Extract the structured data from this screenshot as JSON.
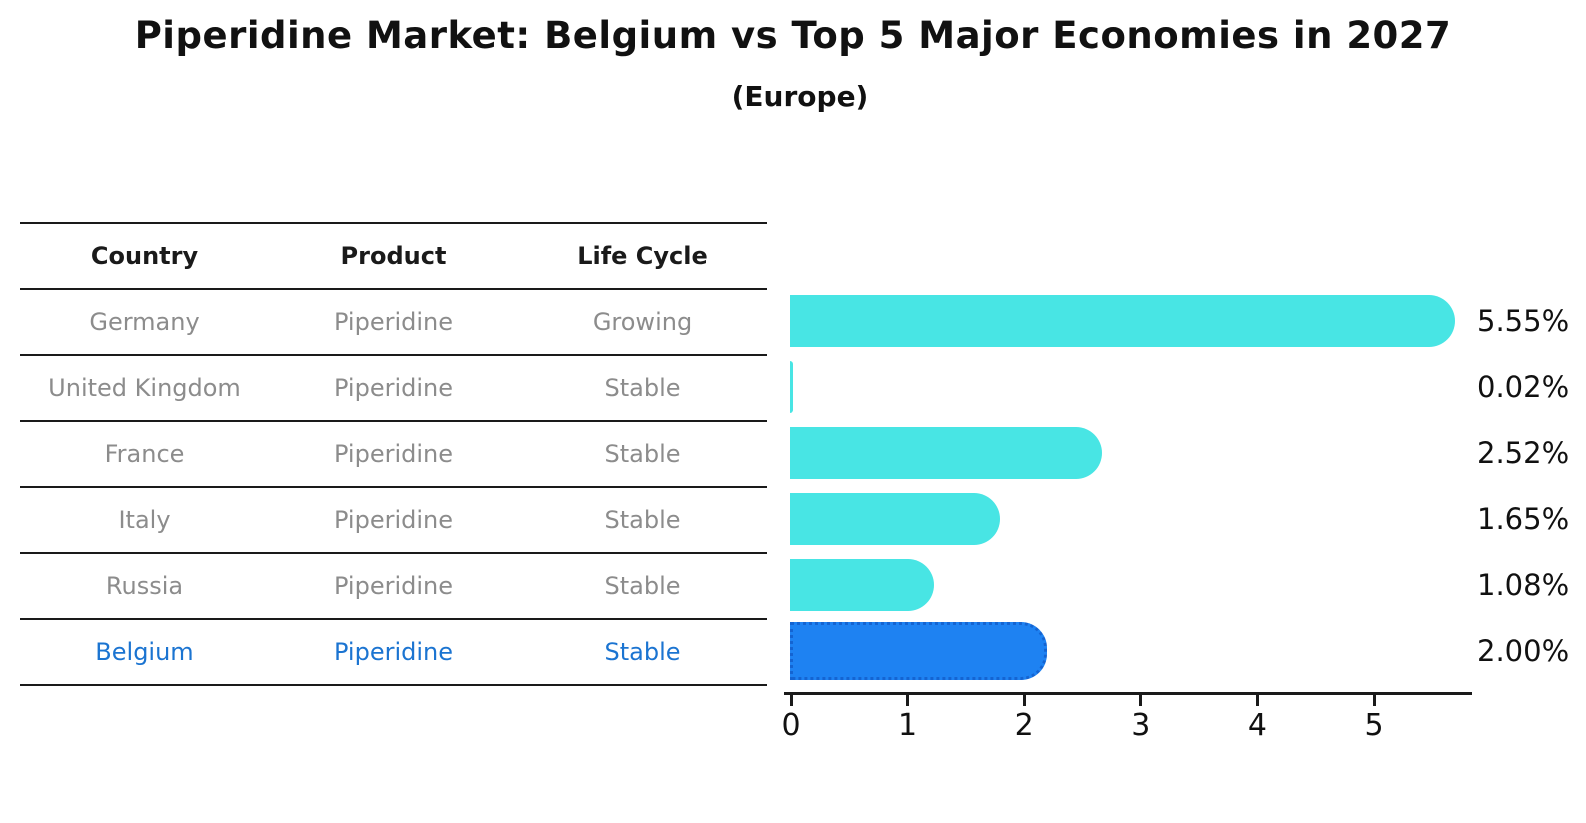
{
  "title": "Piperidine Market: Belgium vs Top 5 Major Economies in 2027",
  "subtitle": "(Europe)",
  "table": {
    "headers": [
      "Country",
      "Product",
      "Life Cycle"
    ]
  },
  "rows": [
    {
      "country": "Germany",
      "product": "Piperidine",
      "life_cycle": "Growing",
      "value": 5.55,
      "value_label": "5.55%",
      "highlighted": false
    },
    {
      "country": "United Kingdom",
      "product": "Piperidine",
      "life_cycle": "Stable",
      "value": 0.02,
      "value_label": "0.02%",
      "highlighted": false
    },
    {
      "country": "France",
      "product": "Piperidine",
      "life_cycle": "Stable",
      "value": 2.52,
      "value_label": "2.52%",
      "highlighted": false
    },
    {
      "country": "Italy",
      "product": "Piperidine",
      "life_cycle": "Stable",
      "value": 1.65,
      "value_label": "1.65%",
      "highlighted": false
    },
    {
      "country": "Russia",
      "product": "Piperidine",
      "life_cycle": "Stable",
      "value": 1.08,
      "value_label": "1.08%",
      "highlighted": false
    },
    {
      "country": "Belgium",
      "product": "Piperidine",
      "life_cycle": "Stable",
      "value": 2.0,
      "value_label": "2.00%",
      "highlighted": true
    }
  ],
  "chart_data": {
    "type": "bar",
    "orientation": "horizontal",
    "title": "Piperidine Market: Belgium vs Top 5 Major Economies in 2027",
    "subtitle": "(Europe)",
    "categories": [
      "Germany",
      "United Kingdom",
      "France",
      "Italy",
      "Russia",
      "Belgium"
    ],
    "values": [
      5.55,
      0.02,
      2.52,
      1.65,
      1.08,
      2.0
    ],
    "value_labels": [
      "5.55%",
      "0.02%",
      "2.52%",
      "1.65%",
      "1.08%",
      "2.00%"
    ],
    "xlabel": "",
    "ylabel": "",
    "xlim": [
      0,
      5.85
    ],
    "x_ticks": [
      0,
      1,
      2,
      3,
      4,
      5
    ],
    "grid": false,
    "legend_position": "none",
    "bar_color": "#48e5e4",
    "highlight_index": 5,
    "highlight_color": "#1e82f2",
    "highlight_border_color": "#1464d2",
    "highlight_text_color": "#1b74d1"
  },
  "colors": {
    "background": "#ffffff",
    "text_primary": "#111111",
    "text_muted": "#8c8c8c",
    "table_line": "#1a1a1a"
  }
}
